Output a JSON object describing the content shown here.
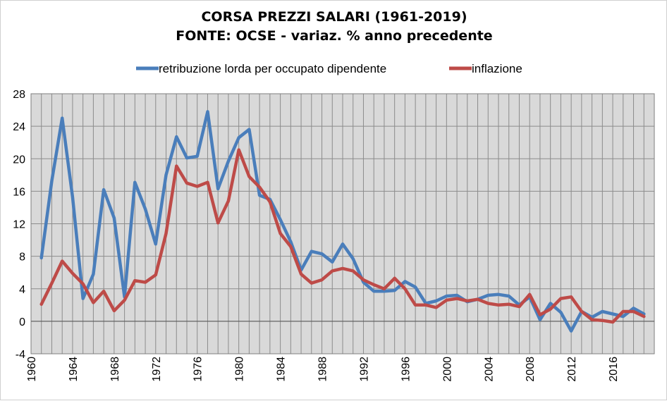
{
  "chart_data": {
    "type": "line",
    "title": "CORSA PREZZI SALARI (1961-2019)",
    "subtitle": "FONTE: OCSE - variaz. % anno precedente",
    "xlabel": "",
    "ylabel": "",
    "xlim": [
      1960,
      2020
    ],
    "ylim": [
      -4,
      28
    ],
    "yticks": [
      -4,
      0,
      4,
      8,
      12,
      16,
      20,
      24,
      28
    ],
    "xticks": [
      1960,
      1964,
      1968,
      1972,
      1976,
      1980,
      1984,
      1988,
      1992,
      1996,
      2000,
      2004,
      2008,
      2012,
      2016
    ],
    "grid": true,
    "legend_position": "top",
    "x": [
      1961,
      1962,
      1963,
      1964,
      1965,
      1966,
      1967,
      1968,
      1969,
      1970,
      1971,
      1972,
      1973,
      1974,
      1975,
      1976,
      1977,
      1978,
      1979,
      1980,
      1981,
      1982,
      1983,
      1984,
      1985,
      1986,
      1987,
      1988,
      1989,
      1990,
      1991,
      1992,
      1993,
      1994,
      1995,
      1996,
      1997,
      1998,
      1999,
      2000,
      2001,
      2002,
      2003,
      2004,
      2005,
      2006,
      2007,
      2008,
      2009,
      2010,
      2011,
      2012,
      2013,
      2014,
      2015,
      2016,
      2017,
      2018,
      2019
    ],
    "series": [
      {
        "name": "retribuzione lorda per occupato dipendente",
        "color": "#4a7ebb",
        "values": [
          7.8,
          17.3,
          25.0,
          15.3,
          2.8,
          5.8,
          16.2,
          12.7,
          3.0,
          17.1,
          13.8,
          9.5,
          18.0,
          22.7,
          20.1,
          20.3,
          25.8,
          16.3,
          19.7,
          22.6,
          23.6,
          15.5,
          15.0,
          12.5,
          9.8,
          6.3,
          8.6,
          8.3,
          7.3,
          9.5,
          7.7,
          4.8,
          3.7,
          3.7,
          3.8,
          4.9,
          4.2,
          2.2,
          2.5,
          3.1,
          3.2,
          2.4,
          2.7,
          3.2,
          3.3,
          3.1,
          2.0,
          3.0,
          0.2,
          2.2,
          1.1,
          -1.2,
          1.2,
          0.5,
          1.2,
          0.9,
          0.6,
          1.6,
          0.9
        ]
      },
      {
        "name": "inflazione",
        "color": "#be4b48",
        "values": [
          2.1,
          4.7,
          7.4,
          5.9,
          4.6,
          2.3,
          3.7,
          1.3,
          2.6,
          5.0,
          4.8,
          5.7,
          10.8,
          19.1,
          17.0,
          16.6,
          17.1,
          12.1,
          14.8,
          21.1,
          17.8,
          16.5,
          14.7,
          10.8,
          9.2,
          5.8,
          4.7,
          5.1,
          6.2,
          6.5,
          6.2,
          5.1,
          4.5,
          4.0,
          5.3,
          4.0,
          2.0,
          2.0,
          1.7,
          2.6,
          2.8,
          2.5,
          2.7,
          2.2,
          2.0,
          2.1,
          1.8,
          3.3,
          0.8,
          1.5,
          2.8,
          3.0,
          1.2,
          0.2,
          0.1,
          -0.1,
          1.2,
          1.2,
          0.6
        ]
      }
    ]
  }
}
